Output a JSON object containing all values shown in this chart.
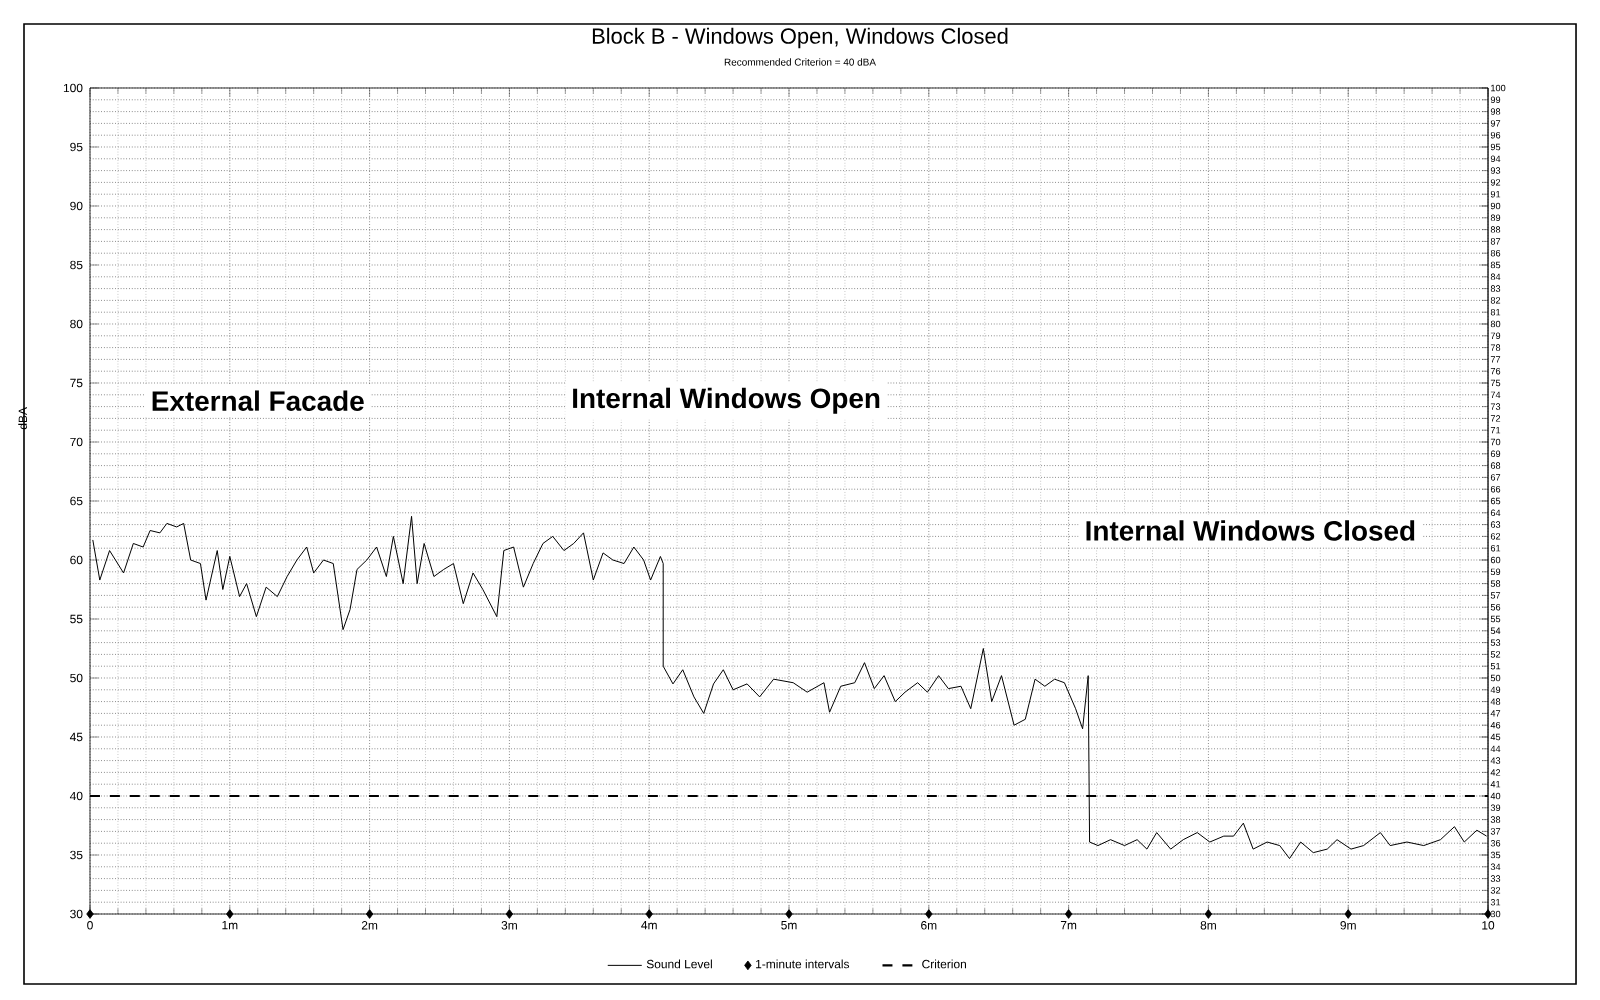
{
  "chart_data": {
    "type": "line",
    "title": "Block B - Windows Open, Windows Closed",
    "subtitle": "Recommended Criterion = 40 dBA",
    "ylabel": "dBA",
    "annotations": [
      "External Facade",
      "Internal Windows Open",
      "Internal Windows Closed"
    ],
    "xlim": [
      0,
      10
    ],
    "xticks": [
      0,
      {
        "value": 1,
        "label": "1m"
      },
      {
        "value": 2,
        "label": "2m"
      },
      {
        "value": 3,
        "label": "3m"
      },
      {
        "value": 4,
        "label": "4m"
      },
      {
        "value": 5,
        "label": "5m"
      },
      {
        "value": 6,
        "label": "6m"
      },
      {
        "value": 7,
        "label": "7m"
      },
      {
        "value": 8,
        "label": "8m"
      },
      {
        "value": 9,
        "label": "9m"
      },
      10
    ],
    "ylim": [
      30,
      100
    ],
    "yticks": [
      30,
      35,
      40,
      45,
      50,
      55,
      60,
      65,
      70,
      75,
      80,
      85,
      90,
      95,
      100
    ],
    "y2lim": [
      30,
      100
    ],
    "y2ticks": [
      30,
      31,
      32,
      33,
      34,
      35,
      36,
      37,
      38,
      39,
      40,
      41,
      42,
      43,
      44,
      45,
      46,
      47,
      48,
      49,
      50,
      51,
      52,
      53,
      54,
      55,
      56,
      57,
      58,
      59,
      60,
      61,
      62,
      63,
      64,
      65,
      66,
      67,
      68,
      69,
      70,
      71,
      72,
      73,
      74,
      75,
      76,
      77,
      78,
      79,
      80,
      81,
      82,
      83,
      84,
      85,
      86,
      87,
      88,
      89,
      90,
      91,
      92,
      93,
      94,
      95,
      96,
      97,
      98,
      99,
      100
    ],
    "grid": true,
    "legend": "bottom",
    "series": [
      {
        "name": "Sound Level",
        "color": "#000000",
        "line_style": "solid",
        "marker": "none",
        "x": [
          0.02,
          0.07,
          0.14,
          0.24,
          0.31,
          0.38,
          0.43,
          0.5,
          0.55,
          0.62,
          0.67,
          0.72,
          0.79,
          0.83,
          0.91,
          0.95,
          1.0,
          1.07,
          1.12,
          1.19,
          1.26,
          1.34,
          1.41,
          1.48,
          1.55,
          1.6,
          1.67,
          1.74,
          1.81,
          1.86,
          1.91,
          1.98,
          2.05,
          2.12,
          2.17,
          2.24,
          2.3,
          2.34,
          2.39,
          2.46,
          2.53,
          2.6,
          2.67,
          2.74,
          2.81,
          2.91,
          2.96,
          3.03,
          3.1,
          3.17,
          3.24,
          3.31,
          3.39,
          3.46,
          3.53,
          3.6,
          3.67,
          3.74,
          3.82,
          3.89,
          3.96,
          4.01,
          4.08,
          4.1,
          4.1,
          4.17,
          4.24,
          4.32,
          4.39,
          4.46,
          4.53,
          4.6,
          4.7,
          4.79,
          4.89,
          5.03,
          5.13,
          5.25,
          5.29,
          5.37,
          5.47,
          5.54,
          5.61,
          5.68,
          5.76,
          5.83,
          5.92,
          5.99,
          6.07,
          6.14,
          6.23,
          6.3,
          6.39,
          6.45,
          6.52,
          6.61,
          6.69,
          6.76,
          6.83,
          6.9,
          6.97,
          7.05,
          7.1,
          7.14,
          7.15,
          7.21,
          7.3,
          7.4,
          7.49,
          7.56,
          7.63,
          7.73,
          7.82,
          7.92,
          8.01,
          8.11,
          8.18,
          8.25,
          8.32,
          8.42,
          8.51,
          8.58,
          8.66,
          8.75,
          8.85,
          8.92,
          9.02,
          9.11,
          9.23,
          9.3,
          9.42,
          9.54,
          9.66,
          9.76,
          9.83,
          9.92,
          9.99
        ],
        "values": [
          61.7,
          58.3,
          60.8,
          58.9,
          61.4,
          61.1,
          62.5,
          62.3,
          63.1,
          62.8,
          63.1,
          60,
          59.7,
          56.6,
          60.8,
          57.5,
          60.3,
          56.9,
          58,
          55.2,
          57.7,
          56.9,
          58.6,
          60,
          61.1,
          58.9,
          60,
          59.7,
          54.1,
          55.8,
          59.2,
          60,
          61.1,
          58.6,
          62,
          58,
          63.7,
          58,
          61.4,
          58.6,
          59.2,
          59.7,
          56.3,
          58.9,
          57.5,
          55.2,
          60.8,
          61.1,
          57.7,
          59.7,
          61.4,
          62,
          60.8,
          61.4,
          62.3,
          58.3,
          60.6,
          60,
          59.7,
          61.1,
          60,
          58.3,
          60.3,
          59.7,
          51,
          49.5,
          50.7,
          48.4,
          47,
          49.5,
          50.7,
          49,
          49.5,
          48.4,
          49.9,
          49.6,
          48.8,
          49.6,
          47.1,
          49.3,
          49.6,
          51.3,
          49.1,
          50.2,
          48,
          48.8,
          49.6,
          48.8,
          50.2,
          49.1,
          49.3,
          47.4,
          52.5,
          48,
          50.2,
          46,
          46.5,
          49.9,
          49.3,
          49.9,
          49.6,
          47.4,
          45.7,
          50.2,
          36.1,
          35.8,
          36.3,
          35.8,
          36.3,
          35.5,
          36.9,
          35.5,
          36.3,
          36.9,
          36.1,
          36.6,
          36.6,
          37.7,
          35.5,
          36.1,
          35.8,
          34.7,
          36.1,
          35.2,
          35.5,
          36.3,
          35.5,
          35.8,
          36.9,
          35.8,
          36.1,
          35.8,
          36.3,
          37.4,
          36.1,
          37.1,
          36.6
        ]
      },
      {
        "name": "1-minute intervals",
        "type": "scatter",
        "color": "#000000",
        "marker": "diamond",
        "x": [
          0,
          1,
          2,
          3,
          4,
          5,
          6,
          7,
          8,
          9,
          10
        ],
        "values": [
          30,
          30,
          30,
          30,
          30,
          30,
          30,
          30,
          30,
          30,
          30
        ]
      },
      {
        "name": "Criterion",
        "color": "#000000",
        "line_style": "dashed",
        "marker": "none",
        "x": [
          0,
          10
        ],
        "values": [
          40,
          40
        ]
      }
    ]
  }
}
